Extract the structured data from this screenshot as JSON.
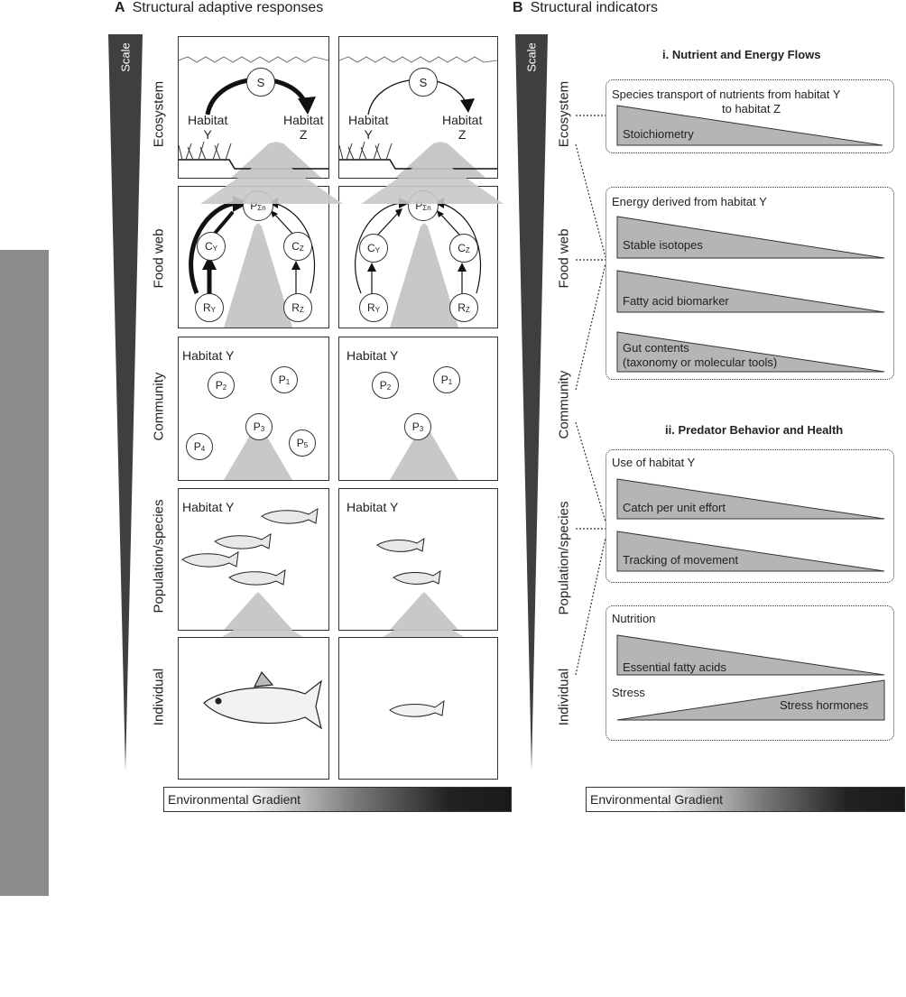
{
  "panel_a": {
    "letter": "A",
    "title": "Structural adaptive responses"
  },
  "panel_b": {
    "letter": "B",
    "title": "Structural indicators"
  },
  "scale_label": "Scale",
  "rows": {
    "ecosystem": "Ecosystem",
    "food_web": "Food web",
    "community": "Community",
    "population": "Population/species",
    "individual": "Individual"
  },
  "ecosystem_box": {
    "node": "S",
    "habitat_y": [
      "Habitat",
      "Y"
    ],
    "habitat_z": [
      "Habitat",
      "Z"
    ]
  },
  "food_web_box": {
    "top": "P",
    "top_sub": "Σn",
    "cy": "C",
    "cy_sub": "Y",
    "cz": "C",
    "cz_sub": "Z",
    "ry": "R",
    "ry_sub": "Y",
    "rz": "R",
    "rz_sub": "Z"
  },
  "community_box": {
    "label": "Habitat Y",
    "left_nodes": [
      {
        "p": "P",
        "sub": "2"
      },
      {
        "p": "P",
        "sub": "1"
      },
      {
        "p": "P",
        "sub": "3"
      },
      {
        "p": "P",
        "sub": "4"
      },
      {
        "p": "P",
        "sub": "5"
      }
    ],
    "right_nodes": [
      {
        "p": "P",
        "sub": "2"
      },
      {
        "p": "P",
        "sub": "1"
      },
      {
        "p": "P",
        "sub": "3"
      }
    ]
  },
  "population_box": {
    "label": "Habitat Y"
  },
  "gradient_label": "Environmental Gradient",
  "section_i": {
    "title": "i. Nutrient and Energy Flows",
    "box1_header": [
      "Species transport of nutrients from habitat Y",
      "to habitat Z"
    ],
    "box1_items": [
      "Stoichiometry"
    ],
    "box2_header": "Energy derived from habitat Y",
    "box2_items": [
      "Stable isotopes",
      "Fatty acid biomarker",
      "Gut contents",
      "(taxonomy or molecular tools)"
    ]
  },
  "section_ii": {
    "title": "ii. Predator Behavior and Health",
    "box3_header": "Use of habitat Y",
    "box3_items": [
      "Catch per unit effort",
      "Tracking of movement"
    ],
    "box4_header": "Nutrition",
    "box4_items": [
      "Essential fatty acids"
    ],
    "box4_header2": "Stress",
    "box4_items2": [
      "Stress hormones"
    ]
  },
  "colors": {
    "wedge_fill": "#b5b5b5",
    "scale_fill": "#3f3f3f",
    "arrow_grey": "#cccccc",
    "side_bar": "#8c8c8c"
  }
}
